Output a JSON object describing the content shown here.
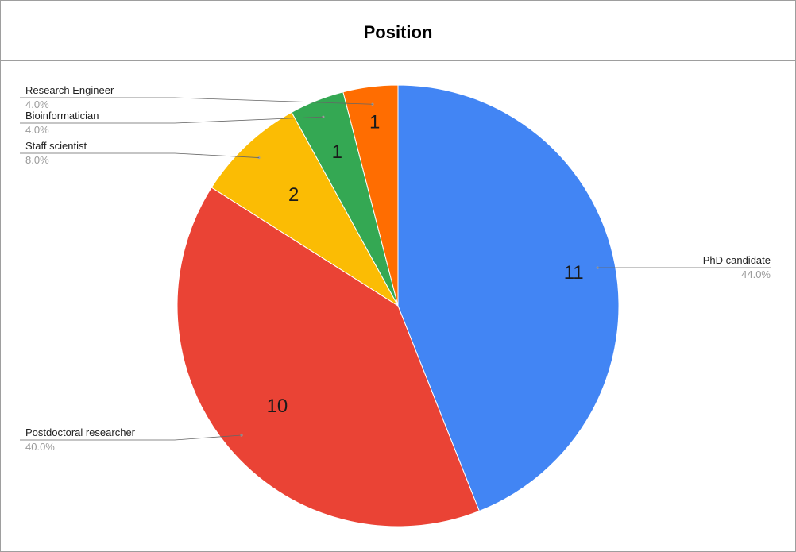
{
  "chart_data": {
    "type": "pie",
    "title": "Position",
    "slices": [
      {
        "label": "PhD candidate",
        "value": 11,
        "percent": "44.0%",
        "color": "#4285f4",
        "callout_side": "right"
      },
      {
        "label": "Postdoctoral researcher",
        "value": 10,
        "percent": "40.0%",
        "color": "#ea4335",
        "callout_side": "left"
      },
      {
        "label": "Staff scientist",
        "value": 2,
        "percent": "8.0%",
        "color": "#fbbc04",
        "callout_side": "left"
      },
      {
        "label": "Bioinformatician",
        "value": 1,
        "percent": "4.0%",
        "color": "#34a853",
        "callout_side": "left"
      },
      {
        "label": "Research Engineer",
        "value": 1,
        "percent": "4.0%",
        "color": "#ff6d01",
        "callout_side": "left"
      }
    ],
    "start_angle": "12 o'clock",
    "direction": "clockwise",
    "legend": "callouts"
  }
}
